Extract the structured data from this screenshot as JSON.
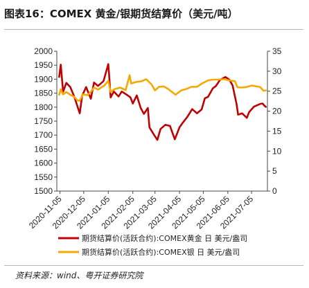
{
  "title": "图表16：COMEX 黄金/银期货结算价（美元/吨）",
  "source": "资料来源：wind、粤开证券研究院",
  "chart_data": {
    "type": "line",
    "x_ticks": [
      "2020-11-05",
      "2020-12-05",
      "2021-01-05",
      "2021-02-05",
      "2021-03-05",
      "2021-04-05",
      "2021-05-05",
      "2021-06-05",
      "2021-07-05"
    ],
    "x_range": [
      "2020-11-01",
      "2021-07-25"
    ],
    "y_left": {
      "min": 1500,
      "max": 2000,
      "step": 50
    },
    "y_right": {
      "min": 0,
      "max": 35,
      "step": 5
    },
    "grid": false,
    "legend_position": "bottom",
    "series": [
      {
        "name": "期货结算价(活跃合约):COMEX黄金 日 美元/盎司",
        "axis": "left",
        "color": "#c00000",
        "points": [
          [
            "2020-11-04",
            1908
          ],
          [
            "2020-11-06",
            1952
          ],
          [
            "2020-11-09",
            1855
          ],
          [
            "2020-11-13",
            1887
          ],
          [
            "2020-11-18",
            1872
          ],
          [
            "2020-11-23",
            1838
          ],
          [
            "2020-11-26",
            1812
          ],
          [
            "2020-11-30",
            1778
          ],
          [
            "2020-12-03",
            1841
          ],
          [
            "2020-12-08",
            1872
          ],
          [
            "2020-12-14",
            1830
          ],
          [
            "2020-12-18",
            1888
          ],
          [
            "2020-12-23",
            1876
          ],
          [
            "2020-12-30",
            1893
          ],
          [
            "2021-01-05",
            1954
          ],
          [
            "2021-01-06",
            1918
          ],
          [
            "2021-01-08",
            1835
          ],
          [
            "2021-01-12",
            1856
          ],
          [
            "2021-01-18",
            1838
          ],
          [
            "2021-01-22",
            1856
          ],
          [
            "2021-01-28",
            1845
          ],
          [
            "2021-02-02",
            1835
          ],
          [
            "2021-02-05",
            1813
          ],
          [
            "2021-02-10",
            1842
          ],
          [
            "2021-02-15",
            1797
          ],
          [
            "2021-02-19",
            1776
          ],
          [
            "2021-02-24",
            1797
          ],
          [
            "2021-02-26",
            1728
          ],
          [
            "2021-03-04",
            1700
          ],
          [
            "2021-03-08",
            1683
          ],
          [
            "2021-03-12",
            1722
          ],
          [
            "2021-03-18",
            1737
          ],
          [
            "2021-03-24",
            1733
          ],
          [
            "2021-03-30",
            1685
          ],
          [
            "2021-04-05",
            1728
          ],
          [
            "2021-04-09",
            1744
          ],
          [
            "2021-04-15",
            1766
          ],
          [
            "2021-04-21",
            1793
          ],
          [
            "2021-04-27",
            1778
          ],
          [
            "2021-05-03",
            1792
          ],
          [
            "2021-05-07",
            1832
          ],
          [
            "2021-05-11",
            1837
          ],
          [
            "2021-05-17",
            1867
          ],
          [
            "2021-05-21",
            1876
          ],
          [
            "2021-05-26",
            1897
          ],
          [
            "2021-06-02",
            1908
          ],
          [
            "2021-06-07",
            1898
          ],
          [
            "2021-06-11",
            1878
          ],
          [
            "2021-06-16",
            1812
          ],
          [
            "2021-06-18",
            1773
          ],
          [
            "2021-06-23",
            1778
          ],
          [
            "2021-06-29",
            1762
          ],
          [
            "2021-07-02",
            1783
          ],
          [
            "2021-07-08",
            1802
          ],
          [
            "2021-07-13",
            1808
          ],
          [
            "2021-07-16",
            1812
          ],
          [
            "2021-07-19",
            1813
          ],
          [
            "2021-07-21",
            1806
          ],
          [
            "2021-07-23",
            1801
          ]
        ]
      },
      {
        "name": "期货结算价(活跃合约):COMEX银 日 美元/盎司",
        "axis": "right",
        "color": "#f5a800",
        "points": [
          [
            "2020-11-04",
            24.1
          ],
          [
            "2020-11-06",
            25.5
          ],
          [
            "2020-11-09",
            24.2
          ],
          [
            "2020-11-13",
            24.8
          ],
          [
            "2020-11-18",
            24.1
          ],
          [
            "2020-11-23",
            23.6
          ],
          [
            "2020-11-27",
            22.7
          ],
          [
            "2020-11-30",
            22.6
          ],
          [
            "2020-12-04",
            24.2
          ],
          [
            "2020-12-10",
            24.0
          ],
          [
            "2020-12-15",
            25.1
          ],
          [
            "2020-12-18",
            25.9
          ],
          [
            "2020-12-23",
            25.4
          ],
          [
            "2020-12-31",
            26.4
          ],
          [
            "2021-01-05",
            27.6
          ],
          [
            "2021-01-08",
            24.8
          ],
          [
            "2021-01-13",
            25.5
          ],
          [
            "2021-01-20",
            25.9
          ],
          [
            "2021-01-27",
            25.3
          ],
          [
            "2021-02-01",
            29.0
          ],
          [
            "2021-02-03",
            26.9
          ],
          [
            "2021-02-09",
            27.3
          ],
          [
            "2021-02-16",
            27.5
          ],
          [
            "2021-02-22",
            28.0
          ],
          [
            "2021-02-24",
            27.6
          ],
          [
            "2021-03-01",
            26.6
          ],
          [
            "2021-03-05",
            25.2
          ],
          [
            "2021-03-10",
            26.1
          ],
          [
            "2021-03-16",
            26.2
          ],
          [
            "2021-03-22",
            25.5
          ],
          [
            "2021-03-31",
            24.1
          ],
          [
            "2021-04-07",
            25.2
          ],
          [
            "2021-04-13",
            25.5
          ],
          [
            "2021-04-20",
            26.1
          ],
          [
            "2021-04-27",
            26.1
          ],
          [
            "2021-05-04",
            27.0
          ],
          [
            "2021-05-11",
            27.7
          ],
          [
            "2021-05-17",
            27.9
          ],
          [
            "2021-05-24",
            27.9
          ],
          [
            "2021-05-31",
            28.0
          ],
          [
            "2021-06-07",
            27.7
          ],
          [
            "2021-06-14",
            27.5
          ],
          [
            "2021-06-17",
            26.0
          ],
          [
            "2021-06-21",
            25.9
          ],
          [
            "2021-06-28",
            26.0
          ],
          [
            "2021-07-05",
            26.4
          ],
          [
            "2021-07-12",
            26.2
          ],
          [
            "2021-07-16",
            26.0
          ],
          [
            "2021-07-20",
            25.1
          ],
          [
            "2021-07-23",
            25.2
          ]
        ]
      }
    ]
  }
}
